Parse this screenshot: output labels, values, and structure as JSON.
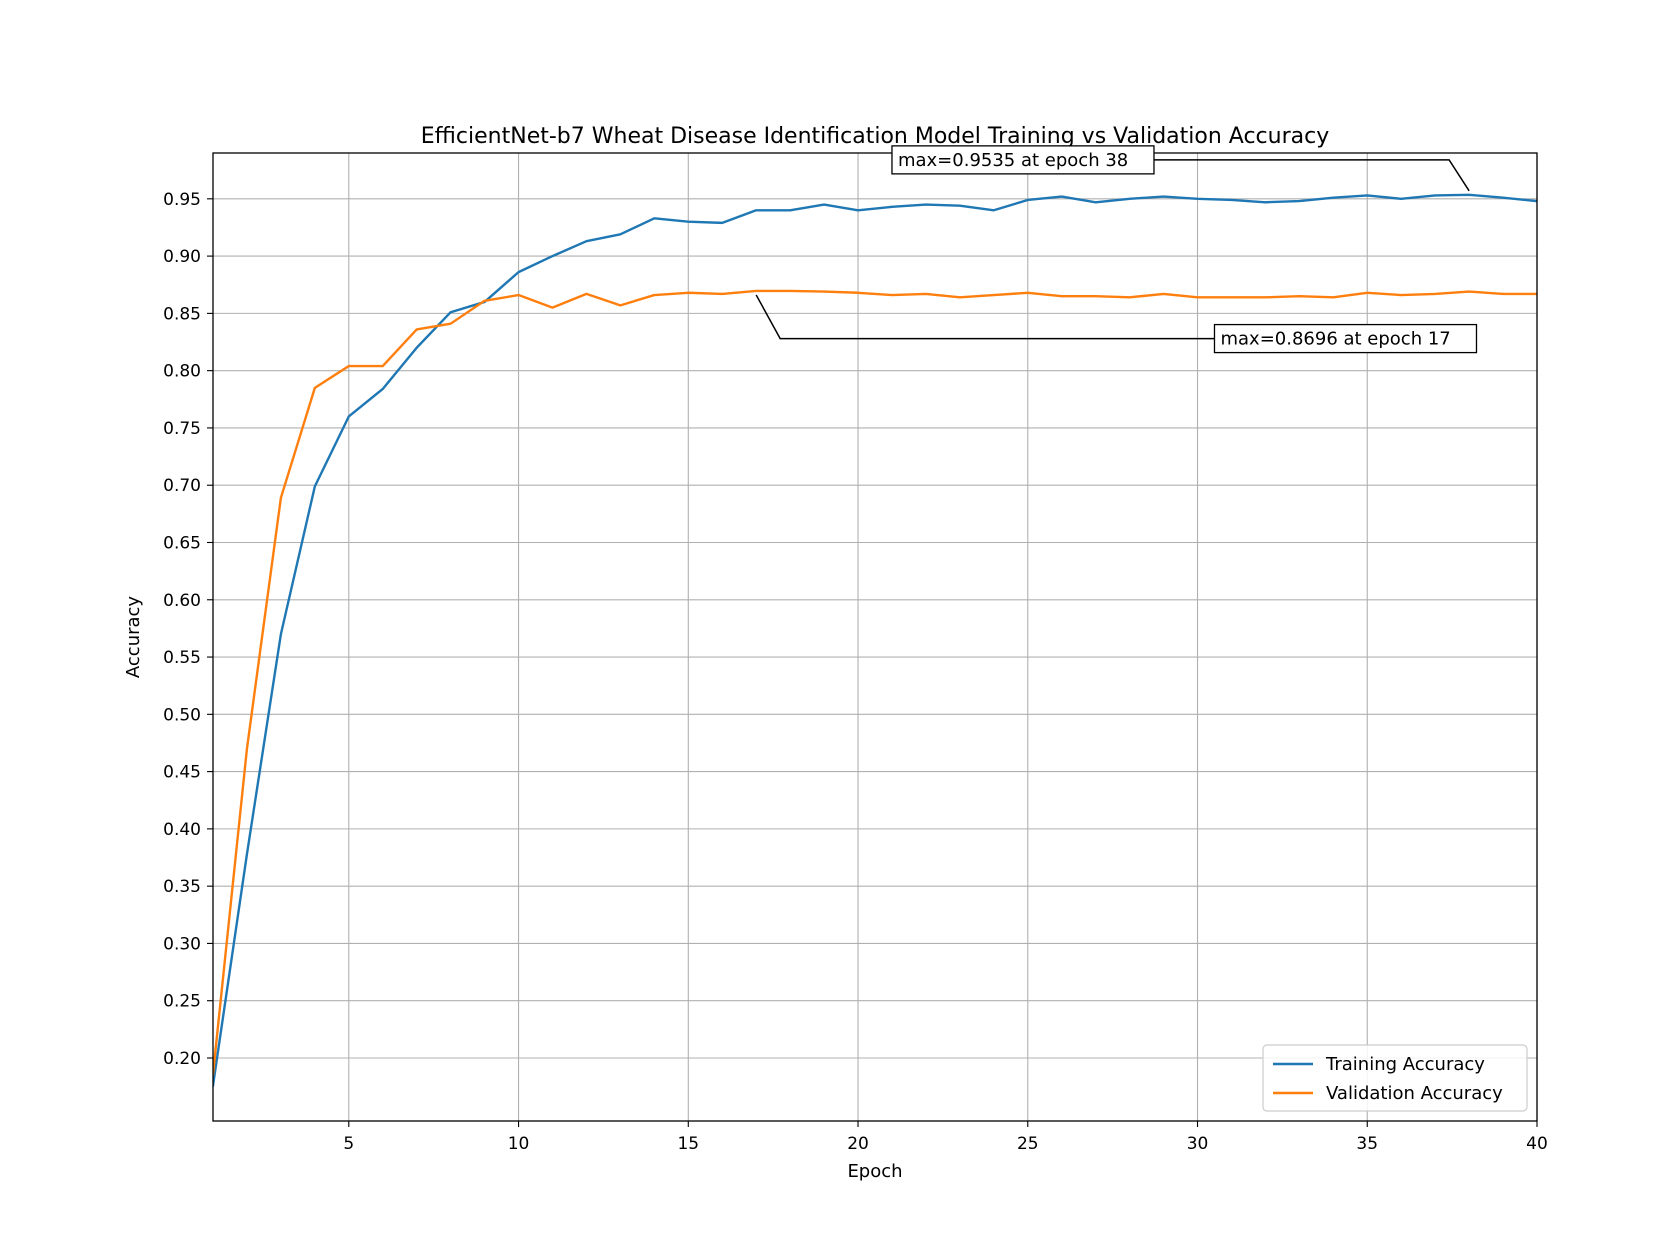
{
  "chart_data": {
    "type": "line",
    "title": "EfficientNet-b7 Wheat Disease Identification Model Training vs Validation Accuracy",
    "xlabel": "Epoch",
    "ylabel": "Accuracy",
    "xlim": [
      1,
      40
    ],
    "ylim": [
      0.145,
      0.99
    ],
    "grid": true,
    "legend_position": "lower-right",
    "x": [
      1,
      2,
      3,
      4,
      5,
      6,
      7,
      8,
      9,
      10,
      11,
      12,
      13,
      14,
      15,
      16,
      17,
      18,
      19,
      20,
      21,
      22,
      23,
      24,
      25,
      26,
      27,
      28,
      29,
      30,
      31,
      32,
      33,
      34,
      35,
      36,
      37,
      38,
      39,
      40
    ],
    "xticks": [
      5,
      10,
      15,
      20,
      25,
      30,
      35,
      40
    ],
    "xtick_labels": [
      "5",
      "10",
      "15",
      "20",
      "25",
      "30",
      "35",
      "40"
    ],
    "yticks": [
      0.2,
      0.25,
      0.3,
      0.35,
      0.4,
      0.45,
      0.5,
      0.55,
      0.6,
      0.65,
      0.7,
      0.75,
      0.8,
      0.85,
      0.9,
      0.95
    ],
    "ytick_labels": [
      "0.20",
      "0.25",
      "0.30",
      "0.35",
      "0.40",
      "0.45",
      "0.50",
      "0.55",
      "0.60",
      "0.65",
      "0.70",
      "0.75",
      "0.80",
      "0.85",
      "0.90",
      "0.95"
    ],
    "series": [
      {
        "name": "Training Accuracy",
        "color": "#1f77b4",
        "values": [
          0.176,
          0.378,
          0.57,
          0.699,
          0.76,
          0.784,
          0.82,
          0.851,
          0.86,
          0.886,
          0.9,
          0.913,
          0.919,
          0.933,
          0.93,
          0.929,
          0.94,
          0.94,
          0.945,
          0.94,
          0.943,
          0.945,
          0.944,
          0.94,
          0.949,
          0.952,
          0.947,
          0.95,
          0.952,
          0.95,
          0.949,
          0.947,
          0.948,
          0.951,
          0.953,
          0.95,
          0.953,
          0.9535,
          0.951,
          0.948
        ]
      },
      {
        "name": "Validation Accuracy",
        "color": "#ff7f0e",
        "values": [
          0.186,
          0.47,
          0.689,
          0.785,
          0.804,
          0.804,
          0.836,
          0.841,
          0.861,
          0.866,
          0.855,
          0.867,
          0.857,
          0.866,
          0.868,
          0.867,
          0.8696,
          0.8696,
          0.869,
          0.868,
          0.866,
          0.867,
          0.864,
          0.866,
          0.868,
          0.865,
          0.865,
          0.864,
          0.867,
          0.864,
          0.864,
          0.864,
          0.865,
          0.864,
          0.868,
          0.866,
          0.867,
          0.869,
          0.867,
          0.867
        ]
      }
    ],
    "annotations": [
      {
        "text": "max=0.9535 at epoch 38",
        "point_x": 38,
        "point_y": 0.9535,
        "text_anchor_x": 21,
        "text_anchor_y": 0.984
      },
      {
        "text": "max=0.8696 at epoch 17",
        "point_x": 17,
        "point_y": 0.8696,
        "text_anchor_x": 30.5,
        "text_anchor_y": 0.828
      }
    ]
  }
}
